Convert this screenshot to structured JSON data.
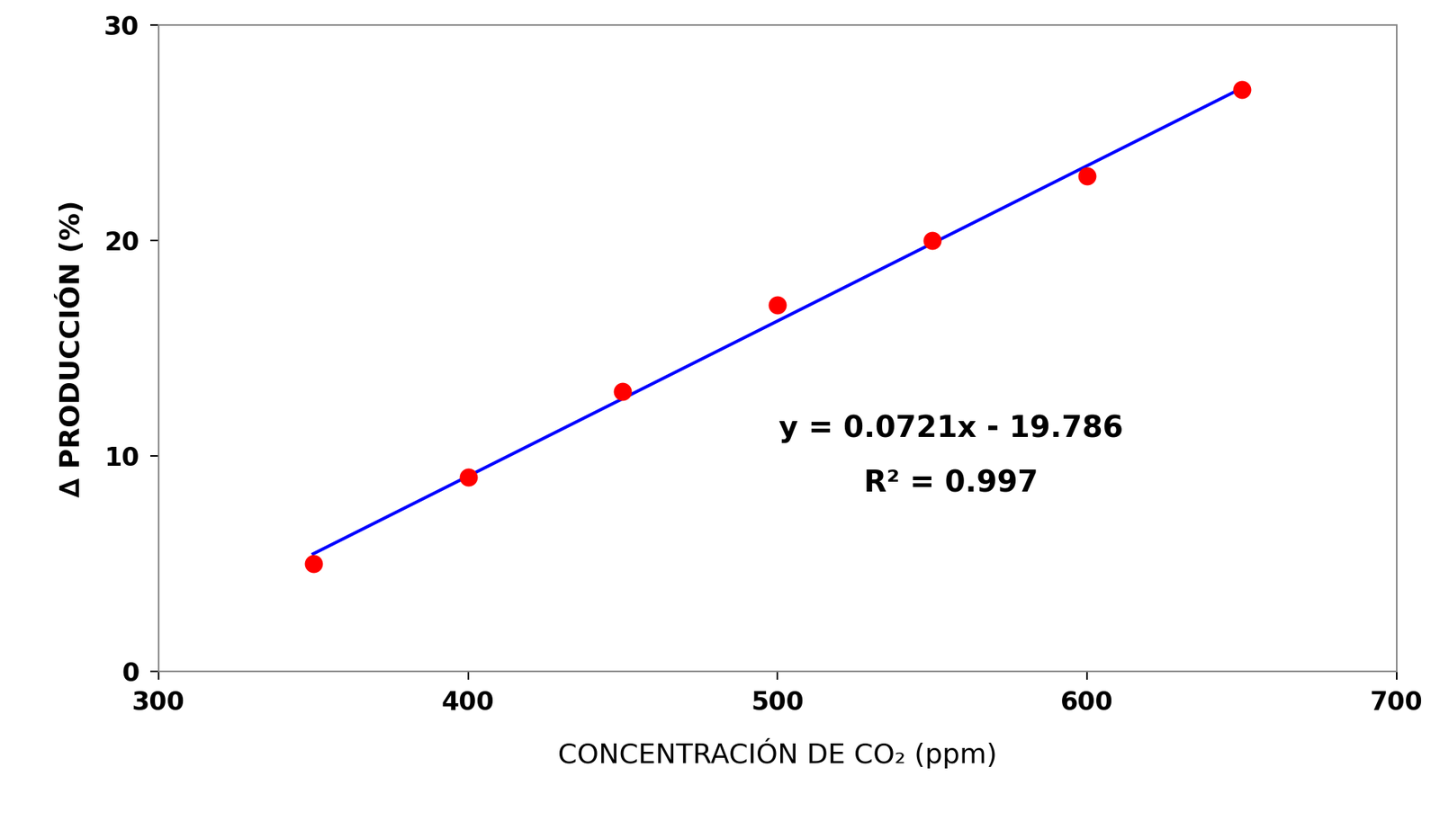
{
  "chart_data": {
    "type": "scatter",
    "x_label": "CONCENTRACIÓN DE CO₂ (ppm)",
    "y_label": "∆ PRODUCCIÓN (%)",
    "x": [
      350,
      400,
      450,
      500,
      550,
      600,
      650
    ],
    "values": [
      5,
      9,
      13,
      17,
      20,
      23,
      27
    ],
    "color": "#ff0000",
    "marker": "o",
    "trendline": {
      "x": [
        350,
        650
      ],
      "values": [
        5.45,
        27.08
      ],
      "color": "#0000ff",
      "line_style": "solid"
    },
    "annotations": [
      "y = 0.0721x - 19.786",
      "R² = 0.997"
    ],
    "xlim": [
      300,
      700
    ],
    "xticks": [
      300,
      400,
      500,
      600,
      700
    ],
    "ylim": [
      0,
      30
    ],
    "yticks": [
      0,
      10,
      20,
      30
    ],
    "grid": false
  }
}
